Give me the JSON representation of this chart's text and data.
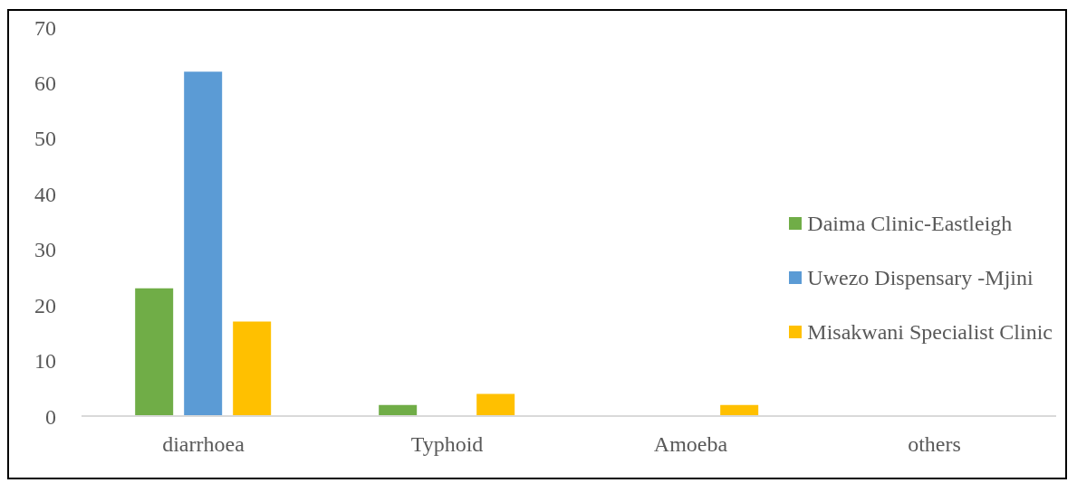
{
  "chart_data": {
    "type": "bar",
    "categories": [
      "diarrhoea",
      "Typhoid",
      "Amoeba",
      "others"
    ],
    "series": [
      {
        "name": "Daima Clinic-Eastleigh",
        "color": "#70ad47",
        "values": [
          23,
          2,
          0,
          0
        ]
      },
      {
        "name": "Uwezo Dispensary -Mjini",
        "color": "#5b9bd5",
        "values": [
          62,
          0,
          0,
          0
        ]
      },
      {
        "name": "Misakwani Specialist Clinic",
        "color": "#ffc000",
        "values": [
          17,
          4,
          2,
          0
        ]
      }
    ],
    "ylim": [
      0,
      70
    ],
    "yticks": [
      0,
      10,
      20,
      30,
      40,
      50,
      60,
      70
    ],
    "grid": false,
    "legend": "right"
  }
}
